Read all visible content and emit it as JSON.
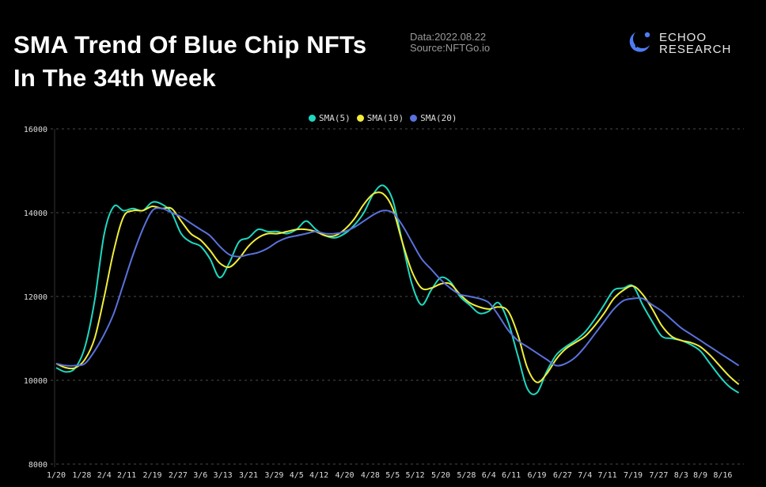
{
  "header": {
    "title_line1": "SMA Trend Of Blue Chip NFTs",
    "title_line2": "In The 34th Week",
    "date_label": "Data:2022.08.22",
    "source_label": "Source:NFTGo.io",
    "logo_line1": "ECHOO",
    "logo_line2": "RESEARCH",
    "logo_icon": "echoo-logo-icon",
    "logo_color": "#4f7cf2"
  },
  "chart_data": {
    "type": "line",
    "title": "SMA Trend Of Blue Chip NFTs In The 34th Week",
    "xlabel": "",
    "ylabel": "",
    "ylim": [
      8000,
      16000
    ],
    "yticks": [
      8000,
      10000,
      12000,
      14000,
      16000
    ],
    "grid": true,
    "legend": "top-center",
    "x_tick_labels": [
      "1/20",
      "1/28",
      "2/4",
      "2/11",
      "2/19",
      "2/27",
      "3/6",
      "3/13",
      "3/21",
      "3/29",
      "4/5",
      "4/12",
      "4/20",
      "4/28",
      "5/5",
      "5/12",
      "5/20",
      "5/28",
      "6/4",
      "6/11",
      "6/19",
      "6/27",
      "7/4",
      "7/11",
      "7/19",
      "7/27",
      "8/3",
      "8/9",
      "8/16"
    ],
    "x_tick_days": [
      0,
      8,
      15,
      22,
      30,
      38,
      45,
      52,
      60,
      68,
      75,
      82,
      90,
      98,
      105,
      112,
      120,
      128,
      135,
      142,
      150,
      158,
      165,
      172,
      180,
      188,
      195,
      201,
      208
    ],
    "x_days": [
      0,
      3,
      6,
      9,
      12,
      15,
      18,
      21,
      24,
      27,
      30,
      33,
      36,
      39,
      42,
      45,
      48,
      51,
      54,
      57,
      60,
      63,
      66,
      69,
      72,
      75,
      78,
      81,
      84,
      87,
      90,
      93,
      96,
      99,
      102,
      105,
      108,
      111,
      114,
      117,
      120,
      123,
      126,
      129,
      132,
      135,
      138,
      141,
      144,
      147,
      150,
      153,
      156,
      159,
      162,
      165,
      168,
      171,
      174,
      177,
      180,
      183,
      186,
      189,
      192,
      195,
      198,
      201,
      204,
      207,
      210,
      213
    ],
    "series": [
      {
        "name": "SMA(5)",
        "color": "#1fd8c0",
        "values": [
          10300,
          10200,
          10300,
          10800,
          11900,
          13500,
          14150,
          14050,
          14100,
          14050,
          14250,
          14200,
          14000,
          13500,
          13300,
          13200,
          12900,
          12450,
          12800,
          13300,
          13400,
          13600,
          13550,
          13550,
          13500,
          13600,
          13800,
          13600,
          13450,
          13400,
          13500,
          13700,
          14000,
          14450,
          14650,
          14300,
          13300,
          12300,
          11800,
          12150,
          12450,
          12350,
          12000,
          11800,
          11600,
          11650,
          11850,
          11400,
          10600,
          9800,
          9700,
          10200,
          10600,
          10800,
          10950,
          11150,
          11450,
          11800,
          12150,
          12200,
          12250,
          11800,
          11400,
          11050,
          11000,
          10950,
          10850,
          10700,
          10400,
          10100,
          9850,
          9700
        ]
      },
      {
        "name": "SMA(10)",
        "color": "#f1ee3a",
        "values": [
          10400,
          10300,
          10300,
          10500,
          11000,
          12000,
          13100,
          13900,
          14050,
          14050,
          14150,
          14100,
          14100,
          13800,
          13500,
          13350,
          13100,
          12800,
          12700,
          12900,
          13200,
          13400,
          13500,
          13500,
          13550,
          13600,
          13600,
          13550,
          13450,
          13450,
          13600,
          13850,
          14200,
          14450,
          14450,
          14100,
          13300,
          12600,
          12200,
          12200,
          12300,
          12300,
          12050,
          11850,
          11750,
          11700,
          11750,
          11650,
          11100,
          10300,
          9950,
          10150,
          10500,
          10750,
          10900,
          11050,
          11300,
          11600,
          11950,
          12150,
          12250,
          12050,
          11700,
          11300,
          11050,
          10950,
          10900,
          10800,
          10600,
          10350,
          10100,
          9900
        ]
      },
      {
        "name": "SMA(20)",
        "color": "#5a72dc",
        "values": [
          10400,
          10350,
          10350,
          10400,
          10700,
          11100,
          11600,
          12300,
          13000,
          13600,
          14050,
          14100,
          14000,
          13900,
          13750,
          13600,
          13450,
          13200,
          13000,
          12950,
          13000,
          13050,
          13150,
          13300,
          13400,
          13450,
          13500,
          13550,
          13500,
          13500,
          13550,
          13650,
          13800,
          13950,
          14050,
          14000,
          13700,
          13300,
          12900,
          12650,
          12400,
          12200,
          12050,
          12000,
          11950,
          11850,
          11550,
          11200,
          10950,
          10800,
          10650,
          10500,
          10350,
          10400,
          10550,
          10800,
          11100,
          11400,
          11700,
          11900,
          11950,
          11950,
          11800,
          11650,
          11450,
          11250,
          11100,
          10950,
          10800,
          10650,
          10500,
          10350
        ]
      }
    ]
  }
}
